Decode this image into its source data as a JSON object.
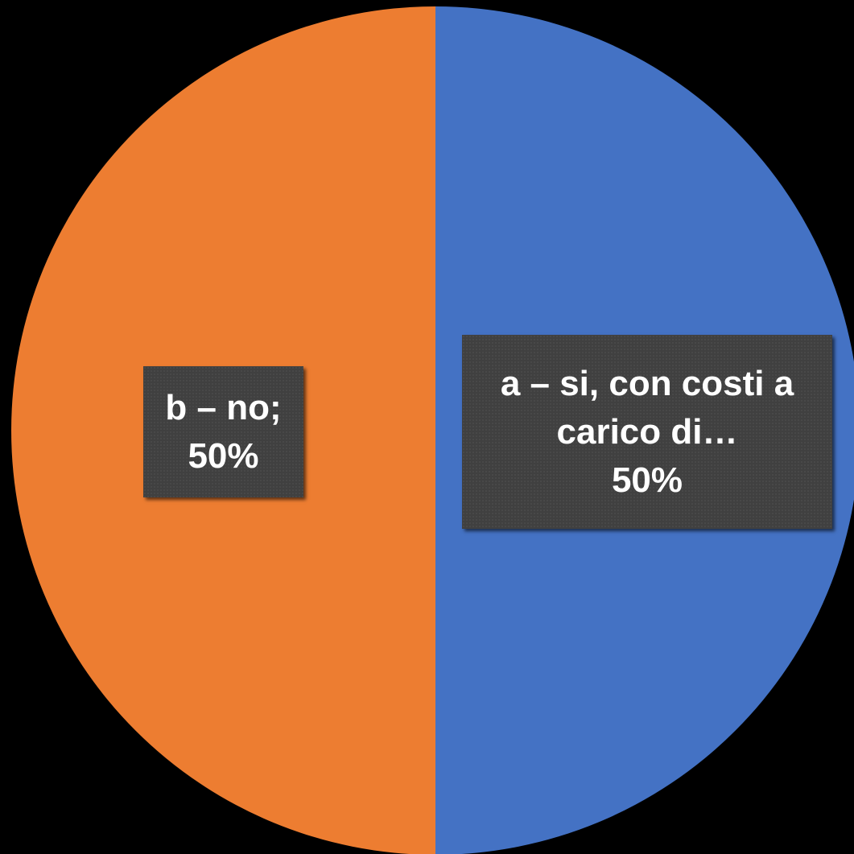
{
  "chart_data": {
    "type": "pie",
    "categories": [
      "a – si, con costi a carico di…",
      "b – no;"
    ],
    "values": [
      50,
      50
    ],
    "value_labels": [
      "50%",
      "50%"
    ],
    "colors": [
      "#4472c4",
      "#ed7d31"
    ]
  }
}
